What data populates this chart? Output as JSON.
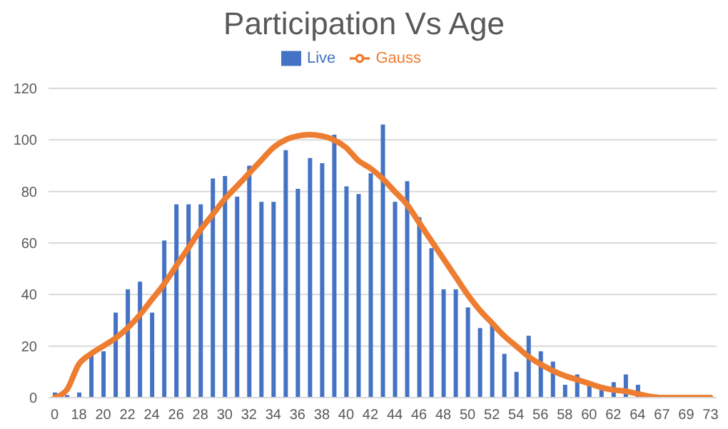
{
  "chart_data": {
    "type": "bar",
    "title": "Participation Vs Age",
    "categories": [
      "0",
      null,
      "18",
      null,
      "20",
      null,
      "22",
      null,
      "24",
      null,
      "26",
      null,
      "28",
      null,
      "30",
      null,
      "32",
      null,
      "34",
      null,
      "36",
      null,
      "38",
      null,
      "40",
      null,
      "42",
      null,
      "44",
      null,
      "46",
      null,
      "48",
      null,
      "50",
      null,
      "52",
      null,
      "54",
      null,
      "56",
      null,
      "58",
      null,
      "60",
      null,
      "62",
      null,
      "64",
      null,
      "67",
      null,
      "69",
      null,
      "73"
    ],
    "series": [
      {
        "name": "Live",
        "color": "#4472c4",
        "values": [
          2,
          1,
          2,
          17,
          18,
          33,
          42,
          45,
          33,
          61,
          75,
          75,
          75,
          85,
          86,
          78,
          90,
          76,
          76,
          96,
          81,
          93,
          91,
          102,
          82,
          79,
          87,
          106,
          76,
          84,
          70,
          58,
          42,
          42,
          35,
          27,
          29,
          17,
          10,
          24,
          18,
          14,
          5,
          9,
          6,
          3,
          6,
          9,
          5,
          0,
          0,
          0,
          0,
          0,
          0
        ]
      },
      {
        "name": "Gauss",
        "type": "line",
        "color": "#ed7d31",
        "values": [
          0,
          3,
          13,
          17,
          20,
          23,
          27,
          32,
          38,
          44,
          51,
          58,
          65,
          71,
          77,
          82,
          87,
          92,
          97,
          100,
          101.5,
          102,
          101.5,
          100,
          97,
          92,
          89,
          85,
          80,
          75,
          68,
          61,
          54,
          47,
          40,
          34,
          29,
          24,
          20,
          16,
          13,
          10.5,
          8.5,
          7,
          5.5,
          4,
          3,
          2.5,
          1.5,
          0.5,
          0,
          0,
          0,
          0,
          0
        ]
      }
    ],
    "ylim": [
      0,
      120
    ],
    "yticks": [
      0,
      20,
      40,
      60,
      80,
      100,
      120
    ],
    "grid": "y",
    "legend": "top"
  }
}
